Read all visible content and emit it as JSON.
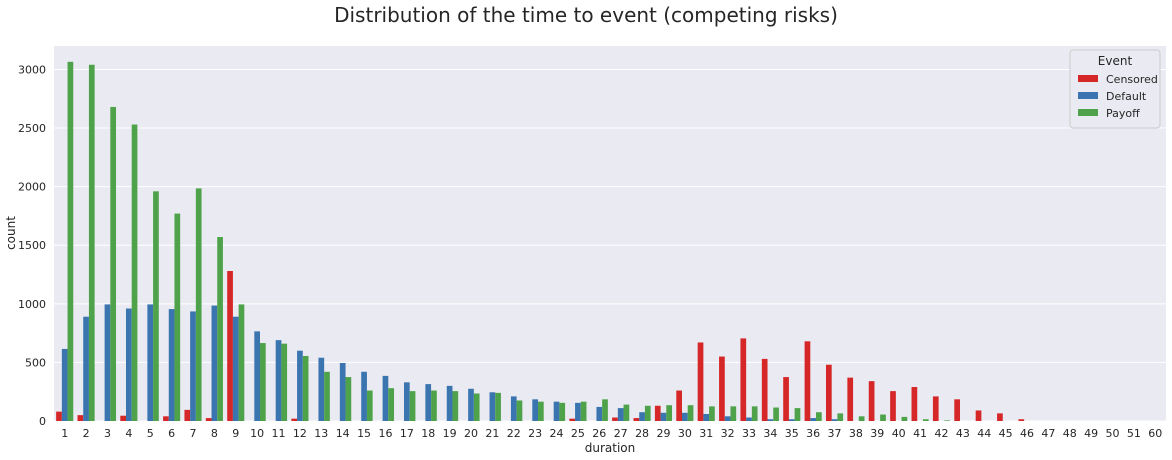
{
  "chart_data": {
    "type": "bar",
    "title": "Distribution of the time to event (competing risks)",
    "xlabel": "duration",
    "ylabel": "count",
    "ylim": [
      0,
      3200
    ],
    "yticks": [
      0,
      500,
      1000,
      1500,
      2000,
      2500,
      3000
    ],
    "grid": true,
    "legend_title": "Event",
    "legend_position": "top-right",
    "categories": [
      "1",
      "2",
      "3",
      "4",
      "5",
      "6",
      "7",
      "8",
      "9",
      "10",
      "11",
      "12",
      "13",
      "14",
      "15",
      "16",
      "17",
      "18",
      "19",
      "20",
      "21",
      "22",
      "23",
      "24",
      "25",
      "26",
      "27",
      "28",
      "29",
      "30",
      "31",
      "32",
      "33",
      "34",
      "35",
      "36",
      "37",
      "38",
      "39",
      "40",
      "41",
      "42",
      "43",
      "44",
      "45",
      "46",
      "47",
      "48",
      "49",
      "50",
      "51",
      "60"
    ],
    "series": [
      {
        "name": "Censored",
        "color": "#d62728",
        "values": [
          80,
          50,
          0,
          45,
          0,
          40,
          95,
          25,
          1280,
          0,
          0,
          20,
          0,
          0,
          0,
          0,
          0,
          0,
          0,
          0,
          0,
          0,
          0,
          0,
          20,
          0,
          30,
          25,
          130,
          260,
          670,
          550,
          705,
          530,
          375,
          680,
          480,
          370,
          340,
          255,
          290,
          210,
          185,
          90,
          65,
          15,
          0,
          0,
          0,
          0,
          0,
          0
        ]
      },
      {
        "name": "Default",
        "color": "#3a75b0",
        "values": [
          615,
          890,
          995,
          960,
          995,
          955,
          935,
          985,
          890,
          765,
          690,
          600,
          540,
          495,
          420,
          385,
          330,
          315,
          300,
          275,
          245,
          210,
          185,
          165,
          155,
          120,
          110,
          75,
          70,
          70,
          60,
          40,
          30,
          15,
          15,
          25,
          15,
          0,
          0,
          0,
          0,
          0,
          0,
          0,
          0,
          0,
          0,
          0,
          0,
          0,
          0,
          0
        ]
      },
      {
        "name": "Payoff",
        "color": "#4ea34a",
        "values": [
          3065,
          3040,
          2680,
          2530,
          1960,
          1770,
          1985,
          1570,
          995,
          665,
          660,
          555,
          420,
          375,
          260,
          280,
          255,
          260,
          255,
          235,
          240,
          175,
          165,
          155,
          165,
          185,
          140,
          130,
          135,
          135,
          125,
          125,
          125,
          115,
          110,
          75,
          65,
          40,
          55,
          35,
          15,
          5,
          0,
          0,
          0,
          0,
          0,
          0,
          0,
          0,
          0,
          0
        ]
      }
    ]
  }
}
